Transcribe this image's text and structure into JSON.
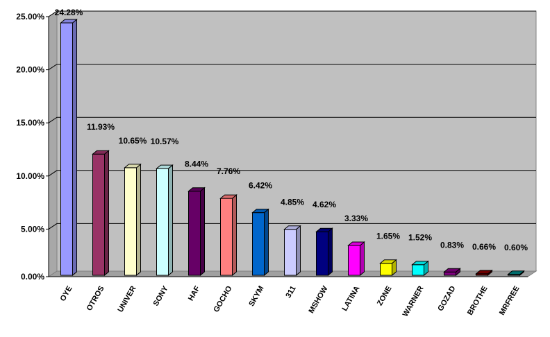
{
  "chart_data": {
    "type": "bar",
    "title": "",
    "xlabel": "",
    "ylabel": "",
    "categories": [
      "OYE",
      "OTROS",
      "UNIVER",
      "SONY",
      "HAF",
      "GOCHO",
      "SKYM",
      "311",
      "MSHOW",
      "LATINA",
      "ZONE",
      "WARNER",
      "GOZAD",
      "BROTHE",
      "MRFREE"
    ],
    "values": [
      24.28,
      11.93,
      10.65,
      10.57,
      8.44,
      7.76,
      6.42,
      4.85,
      4.62,
      3.33,
      1.65,
      1.52,
      0.83,
      0.66,
      0.6
    ],
    "value_labels": [
      "24.28%",
      "11.93%",
      "10.65%",
      "10.57%",
      "8.44%",
      "7.76%",
      "6.42%",
      "4.85%",
      "4.62%",
      "3.33%",
      "1.65%",
      "1.52%",
      "0.83%",
      "0.66%",
      "0.60%"
    ],
    "y_ticks": [
      0,
      5,
      10,
      15,
      20,
      25
    ],
    "y_tick_labels": [
      "0.00%",
      "5.00%",
      "10.00%",
      "15.00%",
      "20.00%",
      "25.00%"
    ],
    "ylim": [
      0,
      25
    ],
    "grid": true,
    "legend": "none",
    "bar_colors": [
      "#9999ff",
      "#993366",
      "#ffffcc",
      "#ccffff",
      "#660066",
      "#ff8080",
      "#0066cc",
      "#ccccff",
      "#000080",
      "#ff00ff",
      "#ffff00",
      "#00ffff",
      "#800080",
      "#800000",
      "#008080"
    ],
    "plot_background": "#c0c0c0"
  }
}
